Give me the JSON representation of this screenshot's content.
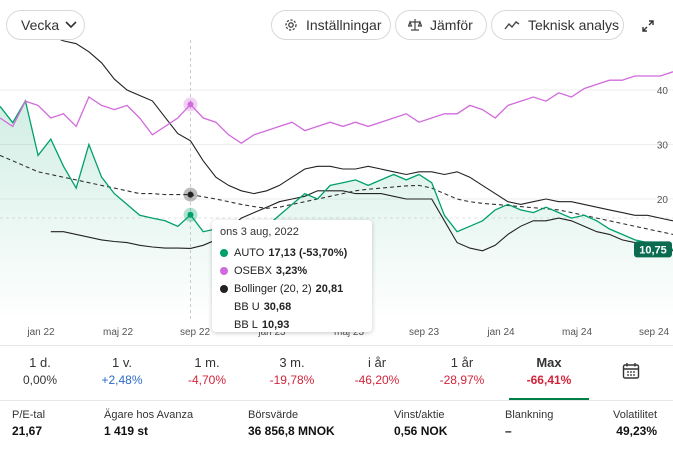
{
  "toolbar": {
    "period_label": "Vecka",
    "settings_label": "Inställningar",
    "compare_label": "Jämför",
    "tech_label": "Teknisk analys"
  },
  "colors": {
    "stock": "#00a06a",
    "index": "#d16bdc",
    "bollinger": "#222222",
    "negative": "#d1243a",
    "positive": "#2b6cc4",
    "active": "#008046"
  },
  "chart_data": {
    "type": "line",
    "x_ticks": [
      "jan 22",
      "maj 22",
      "sep 22",
      "jan 23",
      "maj 23",
      "sep 23",
      "jan 24",
      "maj 24",
      "sep 24"
    ],
    "y_ticks": [
      20,
      30,
      40
    ],
    "last_value_badge": "10,75",
    "series": [
      {
        "name": "AUTO",
        "values": [
          37,
          34,
          38,
          28,
          31,
          26,
          22,
          30,
          24,
          21,
          19,
          17,
          16.5,
          16,
          15,
          17.1,
          14,
          14.5,
          16,
          15.5,
          14,
          15,
          17,
          19,
          21,
          20,
          22.5,
          23,
          23.5,
          22.5,
          23.5,
          24.5,
          23.5,
          24.5,
          23,
          17,
          14,
          15,
          16,
          18,
          19,
          18,
          17.5,
          18.5,
          17.5,
          16.5,
          17,
          16,
          14.5,
          13.5,
          12.5,
          12,
          11.5,
          10.75
        ]
      },
      {
        "name": "OSEBX",
        "values": [
          0,
          -2,
          4,
          3,
          0,
          1,
          -2,
          5,
          3,
          2,
          3,
          0,
          -4,
          -2,
          0,
          3.23,
          0,
          -1,
          -4,
          -6,
          -4,
          -3,
          -2,
          -1,
          -3,
          -2,
          -1,
          -2,
          -1,
          -2,
          -1,
          0,
          1,
          -1,
          0,
          1,
          1,
          3,
          2,
          0,
          3,
          4,
          5,
          4,
          6,
          5,
          7,
          8,
          9,
          9,
          10,
          10,
          10,
          11
        ]
      },
      {
        "name": "Bollinger (20, 2)",
        "values": [
          28,
          27,
          26,
          25,
          24.5,
          24,
          23.5,
          23,
          22.5,
          22,
          21.5,
          21,
          21,
          20.8,
          20.8,
          20.81,
          20.4,
          20,
          19.5,
          19,
          18.6,
          18.3,
          18.5,
          19,
          19.5,
          20,
          20.5,
          21,
          21.5,
          21.8,
          22,
          22.2,
          22.4,
          22.5,
          22,
          21,
          20,
          19.5,
          19.2,
          19,
          18.8,
          18.6,
          18.4,
          18.2,
          18,
          17.5,
          17,
          16.5,
          16,
          15.5,
          15,
          14.5,
          14,
          13.5
        ]
      },
      {
        "name": "BB U",
        "values": [
          null,
          null,
          null,
          null,
          50,
          49,
          48.5,
          47,
          45,
          42,
          40,
          39,
          38,
          35,
          32,
          30.68,
          27,
          24,
          22.5,
          21.5,
          21,
          21.5,
          22.5,
          24,
          25.5,
          26,
          26,
          25.5,
          25.5,
          26,
          25.5,
          25,
          24.5,
          25,
          25,
          24.5,
          25,
          24,
          22.5,
          21,
          19.5,
          19,
          19.5,
          20,
          19.5,
          19.5,
          19,
          18.5,
          18,
          17.5,
          17,
          17,
          16.5,
          16
        ]
      },
      {
        "name": "BB L",
        "values": [
          null,
          null,
          null,
          null,
          14,
          14,
          13.5,
          13,
          12.5,
          12.2,
          12,
          11.5,
          11.2,
          11,
          11,
          10.93,
          11.5,
          12.5,
          14.5,
          16.5,
          17.5,
          18.5,
          19.5,
          20,
          20.5,
          21.5,
          21.5,
          21.5,
          21,
          21,
          21,
          20.5,
          20,
          20,
          20,
          16,
          12,
          11,
          10.5,
          11.5,
          13.5,
          15,
          16,
          16,
          16.5,
          16,
          15,
          14,
          13.5,
          12.5,
          12,
          11.5,
          11,
          10.5
        ]
      }
    ]
  },
  "tooltip": {
    "date": "ons 3 aug, 2022",
    "auto_name": "AUTO",
    "auto_value": "17,13 (-53,70%)",
    "osebx_name": "OSEBX",
    "osebx_value": "3,23%",
    "boll_name": "Bollinger (20, 2)",
    "boll_value": "20,81",
    "bbu_name": "BB U",
    "bbu_value": "30,68",
    "bbl_name": "BB L",
    "bbl_value": "10,93"
  },
  "periods": [
    {
      "label": "1 d.",
      "value": "0,00%",
      "tone": "neutral"
    },
    {
      "label": "1 v.",
      "value": "+2,48%",
      "tone": "positive"
    },
    {
      "label": "1 m.",
      "value": "-4,70%",
      "tone": "negative"
    },
    {
      "label": "3 m.",
      "value": "-19,78%",
      "tone": "negative"
    },
    {
      "label": "i år",
      "value": "-46,20%",
      "tone": "negative"
    },
    {
      "label": "1 år",
      "value": "-28,97%",
      "tone": "negative"
    },
    {
      "label": "Max",
      "value": "-66,41%",
      "tone": "negative",
      "active": true
    }
  ],
  "stats": [
    {
      "label": "P/E-tal",
      "value": "21,67"
    },
    {
      "label": "Ägare hos Avanza",
      "value": "1 419 st"
    },
    {
      "label": "Börsvärde",
      "value": "36 856,8 MNOK"
    },
    {
      "label": "Vinst/aktie",
      "value": "0,56 NOK"
    },
    {
      "label": "Blankning",
      "value": "–"
    },
    {
      "label": "Volatilitet",
      "value": "49,23%"
    }
  ]
}
